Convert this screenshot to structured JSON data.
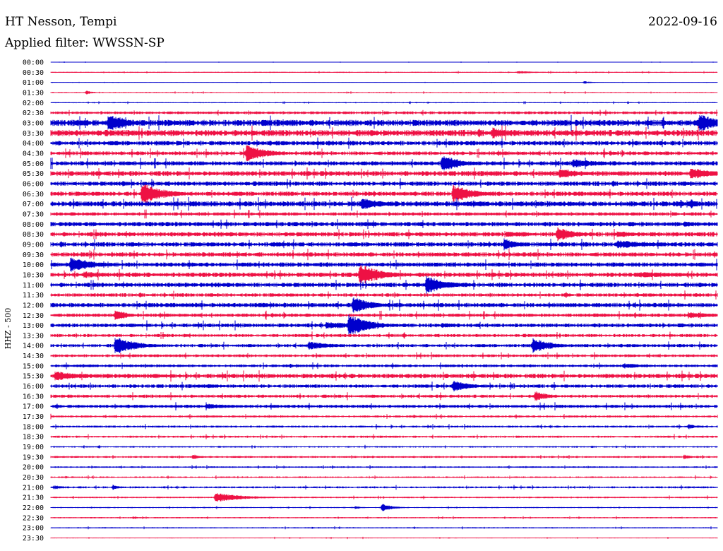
{
  "header": {
    "station": "HT Nesson, Tempi",
    "date": "2022-09-16",
    "filter": "Applied filter: WWSSN-SP"
  },
  "colors": {
    "even_row": "#0000cc",
    "odd_row": "#ee1144"
  },
  "chart_data": {
    "type": "line",
    "title": "HT Nesson, Tempi",
    "subtitle": "Applied filter: WWSSN-SP",
    "ylabel": "HHZ - 500",
    "xlabel": "",
    "grid": false,
    "legend": "none",
    "x_range_minutes": [
      0,
      30
    ],
    "categories": [
      "00:00",
      "00:30",
      "01:00",
      "01:30",
      "02:00",
      "02:30",
      "03:00",
      "03:30",
      "04:00",
      "04:30",
      "05:00",
      "05:30",
      "06:00",
      "06:30",
      "07:00",
      "07:30",
      "08:00",
      "08:30",
      "09:00",
      "09:30",
      "10:00",
      "10:30",
      "11:00",
      "11:30",
      "12:00",
      "12:30",
      "13:00",
      "13:30",
      "14:00",
      "14:30",
      "15:00",
      "15:30",
      "16:00",
      "16:30",
      "17:00",
      "17:30",
      "18:00",
      "18:30",
      "19:00",
      "19:30",
      "20:00",
      "20:30",
      "21:00",
      "21:30",
      "22:00",
      "22:30",
      "23:00",
      "23:30"
    ],
    "noise_level": [
      0.3,
      0.6,
      0.3,
      0.6,
      0.6,
      1.6,
      3.5,
      3.5,
      2.5,
      2.2,
      2.5,
      2.8,
      2.5,
      2.5,
      3.0,
      2.0,
      2.5,
      2.5,
      2.5,
      2.5,
      2.5,
      2.5,
      2.5,
      2.0,
      2.5,
      2.0,
      2.2,
      1.8,
      1.8,
      1.6,
      1.6,
      2.5,
      2.0,
      1.8,
      1.8,
      1.2,
      1.2,
      1.2,
      0.9,
      1.1,
      0.9,
      0.9,
      1.1,
      0.9,
      0.7,
      0.7,
      0.7,
      0.5
    ],
    "events": [
      {
        "row": 1,
        "t": 21.0,
        "amp": 2,
        "dur": 1.0
      },
      {
        "row": 2,
        "t": 24.0,
        "amp": 2,
        "dur": 0.4
      },
      {
        "row": 3,
        "t": 1.6,
        "amp": 3,
        "dur": 0.3
      },
      {
        "row": 6,
        "t": 2.6,
        "amp": 14,
        "dur": 0.9
      },
      {
        "row": 6,
        "t": 5.3,
        "amp": 4,
        "dur": 1.5
      },
      {
        "row": 6,
        "t": 29.2,
        "amp": 14,
        "dur": 0.9
      },
      {
        "row": 7,
        "t": 19.9,
        "amp": 9,
        "dur": 0.7
      },
      {
        "row": 8,
        "t": 5.7,
        "amp": 4,
        "dur": 0.4
      },
      {
        "row": 9,
        "t": 8.8,
        "amp": 12,
        "dur": 1.0
      },
      {
        "row": 10,
        "t": 17.6,
        "amp": 13,
        "dur": 0.9
      },
      {
        "row": 10,
        "t": 23.5,
        "amp": 7,
        "dur": 1.2
      },
      {
        "row": 11,
        "t": 22.9,
        "amp": 8,
        "dur": 1.0
      },
      {
        "row": 11,
        "t": 28.8,
        "amp": 9,
        "dur": 1.0
      },
      {
        "row": 12,
        "t": 3.2,
        "amp": 4,
        "dur": 0.5
      },
      {
        "row": 12,
        "t": 19.7,
        "amp": 3,
        "dur": 0.4
      },
      {
        "row": 13,
        "t": 4.1,
        "amp": 16,
        "dur": 1.0
      },
      {
        "row": 13,
        "t": 18.1,
        "amp": 14,
        "dur": 0.9
      },
      {
        "row": 14,
        "t": 14.0,
        "amp": 9,
        "dur": 1.0
      },
      {
        "row": 14,
        "t": 28.8,
        "amp": 7,
        "dur": 0.5
      },
      {
        "row": 16,
        "t": 28.5,
        "amp": 5,
        "dur": 0.6
      },
      {
        "row": 17,
        "t": 20.5,
        "amp": 4,
        "dur": 1.5
      },
      {
        "row": 17,
        "t": 22.8,
        "amp": 11,
        "dur": 0.8
      },
      {
        "row": 17,
        "t": 25.5,
        "amp": 5,
        "dur": 1.0
      },
      {
        "row": 18,
        "t": 10.0,
        "amp": 4,
        "dur": 1.0
      },
      {
        "row": 18,
        "t": 20.4,
        "amp": 9,
        "dur": 0.6
      },
      {
        "row": 18,
        "t": 25.5,
        "amp": 6,
        "dur": 1.8
      },
      {
        "row": 20,
        "t": 0.9,
        "amp": 12,
        "dur": 1.0
      },
      {
        "row": 21,
        "t": 1.5,
        "amp": 5,
        "dur": 1.0
      },
      {
        "row": 21,
        "t": 13.9,
        "amp": 16,
        "dur": 1.0
      },
      {
        "row": 21,
        "t": 26.5,
        "amp": 4,
        "dur": 2.5
      },
      {
        "row": 22,
        "t": 16.9,
        "amp": 14,
        "dur": 0.9
      },
      {
        "row": 24,
        "t": 9.4,
        "amp": 4,
        "dur": 0.7
      },
      {
        "row": 24,
        "t": 13.6,
        "amp": 12,
        "dur": 0.9
      },
      {
        "row": 25,
        "t": 2.9,
        "amp": 10,
        "dur": 0.5
      },
      {
        "row": 25,
        "t": 24.4,
        "amp": 3,
        "dur": 1.0
      },
      {
        "row": 25,
        "t": 28.7,
        "amp": 5,
        "dur": 1.4
      },
      {
        "row": 26,
        "t": 12.4,
        "amp": 5,
        "dur": 2.2
      },
      {
        "row": 26,
        "t": 13.4,
        "amp": 16,
        "dur": 1.0
      },
      {
        "row": 26,
        "t": 17.6,
        "amp": 4,
        "dur": 0.8
      },
      {
        "row": 27,
        "t": 6.0,
        "amp": 3,
        "dur": 0.3
      },
      {
        "row": 28,
        "t": 2.9,
        "amp": 13,
        "dur": 1.0
      },
      {
        "row": 28,
        "t": 11.6,
        "amp": 6,
        "dur": 1.2
      },
      {
        "row": 28,
        "t": 21.7,
        "amp": 11,
        "dur": 0.9
      },
      {
        "row": 30,
        "t": 25.8,
        "amp": 4,
        "dur": 1.0
      },
      {
        "row": 31,
        "t": 0.2,
        "amp": 7,
        "dur": 1.4
      },
      {
        "row": 32,
        "t": 18.1,
        "amp": 8,
        "dur": 0.9
      },
      {
        "row": 32,
        "t": 7.0,
        "amp": 3,
        "dur": 1.5
      },
      {
        "row": 33,
        "t": 21.8,
        "amp": 8,
        "dur": 0.6
      },
      {
        "row": 34,
        "t": 7.0,
        "amp": 4,
        "dur": 1.5
      },
      {
        "row": 36,
        "t": 28.7,
        "amp": 4,
        "dur": 0.4
      },
      {
        "row": 39,
        "t": 6.4,
        "amp": 4,
        "dur": 0.4
      },
      {
        "row": 39,
        "t": 28.5,
        "amp": 4,
        "dur": 0.3
      },
      {
        "row": 42,
        "t": 0.2,
        "amp": 3,
        "dur": 0.4
      },
      {
        "row": 42,
        "t": 2.8,
        "amp": 4,
        "dur": 0.3
      },
      {
        "row": 43,
        "t": 7.4,
        "amp": 7,
        "dur": 1.3
      },
      {
        "row": 44,
        "t": 14.9,
        "amp": 6,
        "dur": 0.5
      },
      {
        "row": 44,
        "t": 13.7,
        "amp": 2,
        "dur": 0.4
      },
      {
        "row": 45,
        "t": 3.7,
        "amp": 2,
        "dur": 0.3
      }
    ]
  }
}
